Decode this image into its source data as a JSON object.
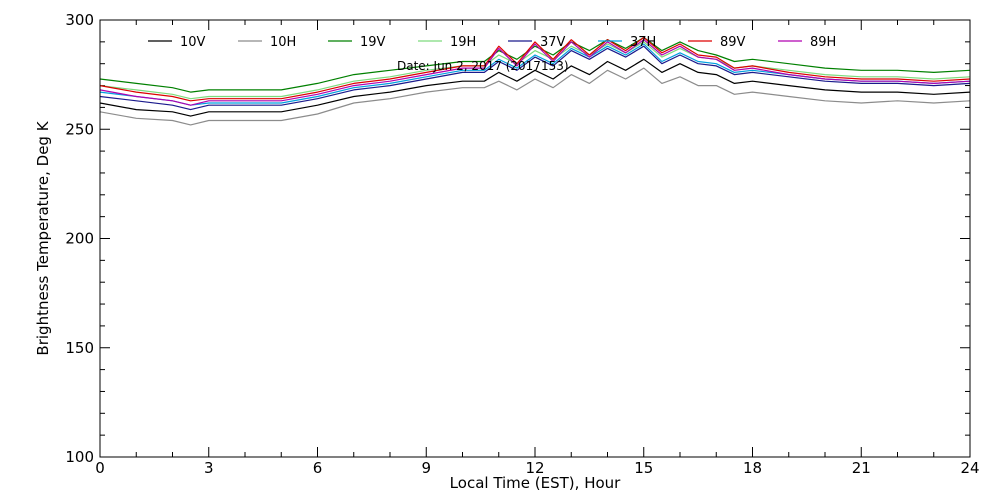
{
  "chart_data": {
    "type": "line",
    "title": "",
    "xlabel": "Local Time (EST), Hour",
    "ylabel": "Brightness Temperature, Deg K",
    "annotation": "Date: Jun 2, 2017 (2017153)",
    "xlim": [
      0,
      24
    ],
    "ylim": [
      100,
      300
    ],
    "xticks": [
      0,
      3,
      6,
      9,
      12,
      15,
      18,
      21,
      24
    ],
    "yticks": [
      100,
      150,
      200,
      250,
      300
    ],
    "grid": false,
    "legend_position": "top",
    "x": [
      0,
      1,
      2,
      2.5,
      3,
      4,
      5,
      6,
      7,
      8,
      9,
      10,
      10.6,
      11,
      11.5,
      12,
      12.5,
      13,
      13.5,
      14,
      14.5,
      15,
      15.5,
      16,
      16.5,
      17,
      17.5,
      18,
      19,
      20,
      21,
      22,
      23,
      24
    ],
    "series": [
      {
        "name": "10V",
        "color": "#000000",
        "values": [
          262,
          259,
          258,
          256,
          258,
          258,
          258,
          261,
          265,
          267,
          270,
          272,
          272,
          276,
          272,
          277,
          273,
          279,
          275,
          281,
          277,
          282,
          276,
          280,
          276,
          275,
          271,
          272,
          270,
          268,
          267,
          267,
          266,
          267
        ]
      },
      {
        "name": "10H",
        "color": "#8c8c8c",
        "values": [
          258,
          255,
          254,
          252,
          254,
          254,
          254,
          257,
          262,
          264,
          267,
          269,
          269,
          272,
          268,
          273,
          269,
          275,
          271,
          277,
          273,
          278,
          271,
          274,
          270,
          270,
          266,
          267,
          265,
          263,
          262,
          263,
          262,
          263
        ]
      },
      {
        "name": "19V",
        "color": "#008000",
        "values": [
          273,
          271,
          269,
          267,
          268,
          268,
          268,
          271,
          275,
          277,
          279,
          281,
          281,
          286,
          282,
          288,
          284,
          290,
          286,
          291,
          287,
          292,
          286,
          290,
          286,
          284,
          281,
          282,
          280,
          278,
          277,
          277,
          276,
          277
        ]
      },
      {
        "name": "19H",
        "color": "#7ddb7d",
        "values": [
          270,
          268,
          266,
          264,
          265,
          265,
          265,
          268,
          272,
          274,
          277,
          279,
          279,
          284,
          280,
          286,
          282,
          288,
          284,
          289,
          285,
          290,
          283,
          287,
          283,
          282,
          278,
          279,
          277,
          275,
          274,
          274,
          273,
          274
        ]
      },
      {
        "name": "37V",
        "color": "#1a1a8c",
        "values": [
          265,
          263,
          261,
          259,
          261,
          261,
          261,
          264,
          268,
          270,
          273,
          276,
          276,
          281,
          277,
          283,
          279,
          286,
          282,
          287,
          283,
          288,
          280,
          284,
          280,
          279,
          275,
          276,
          274,
          272,
          271,
          271,
          270,
          271
        ]
      },
      {
        "name": "37H",
        "color": "#00a0e0",
        "values": [
          267,
          265,
          263,
          261,
          262,
          262,
          262,
          265,
          269,
          271,
          274,
          277,
          277,
          282,
          278,
          284,
          280,
          287,
          283,
          288,
          284,
          289,
          281,
          285,
          281,
          280,
          276,
          277,
          275,
          273,
          272,
          272,
          271,
          272
        ]
      },
      {
        "name": "89V",
        "color": "#dd0000",
        "values": [
          270,
          267,
          265,
          263,
          264,
          264,
          264,
          267,
          271,
          273,
          276,
          279,
          279,
          288,
          280,
          290,
          282,
          291,
          284,
          291,
          286,
          292,
          285,
          289,
          284,
          283,
          278,
          279,
          276,
          274,
          273,
          273,
          272,
          273
        ]
      },
      {
        "name": "89H",
        "color": "#b000b0",
        "values": [
          268,
          265,
          263,
          261,
          263,
          263,
          263,
          266,
          270,
          272,
          275,
          278,
          278,
          287,
          279,
          289,
          281,
          290,
          283,
          290,
          285,
          291,
          284,
          288,
          283,
          282,
          277,
          278,
          275,
          273,
          272,
          272,
          271,
          272
        ]
      }
    ]
  }
}
